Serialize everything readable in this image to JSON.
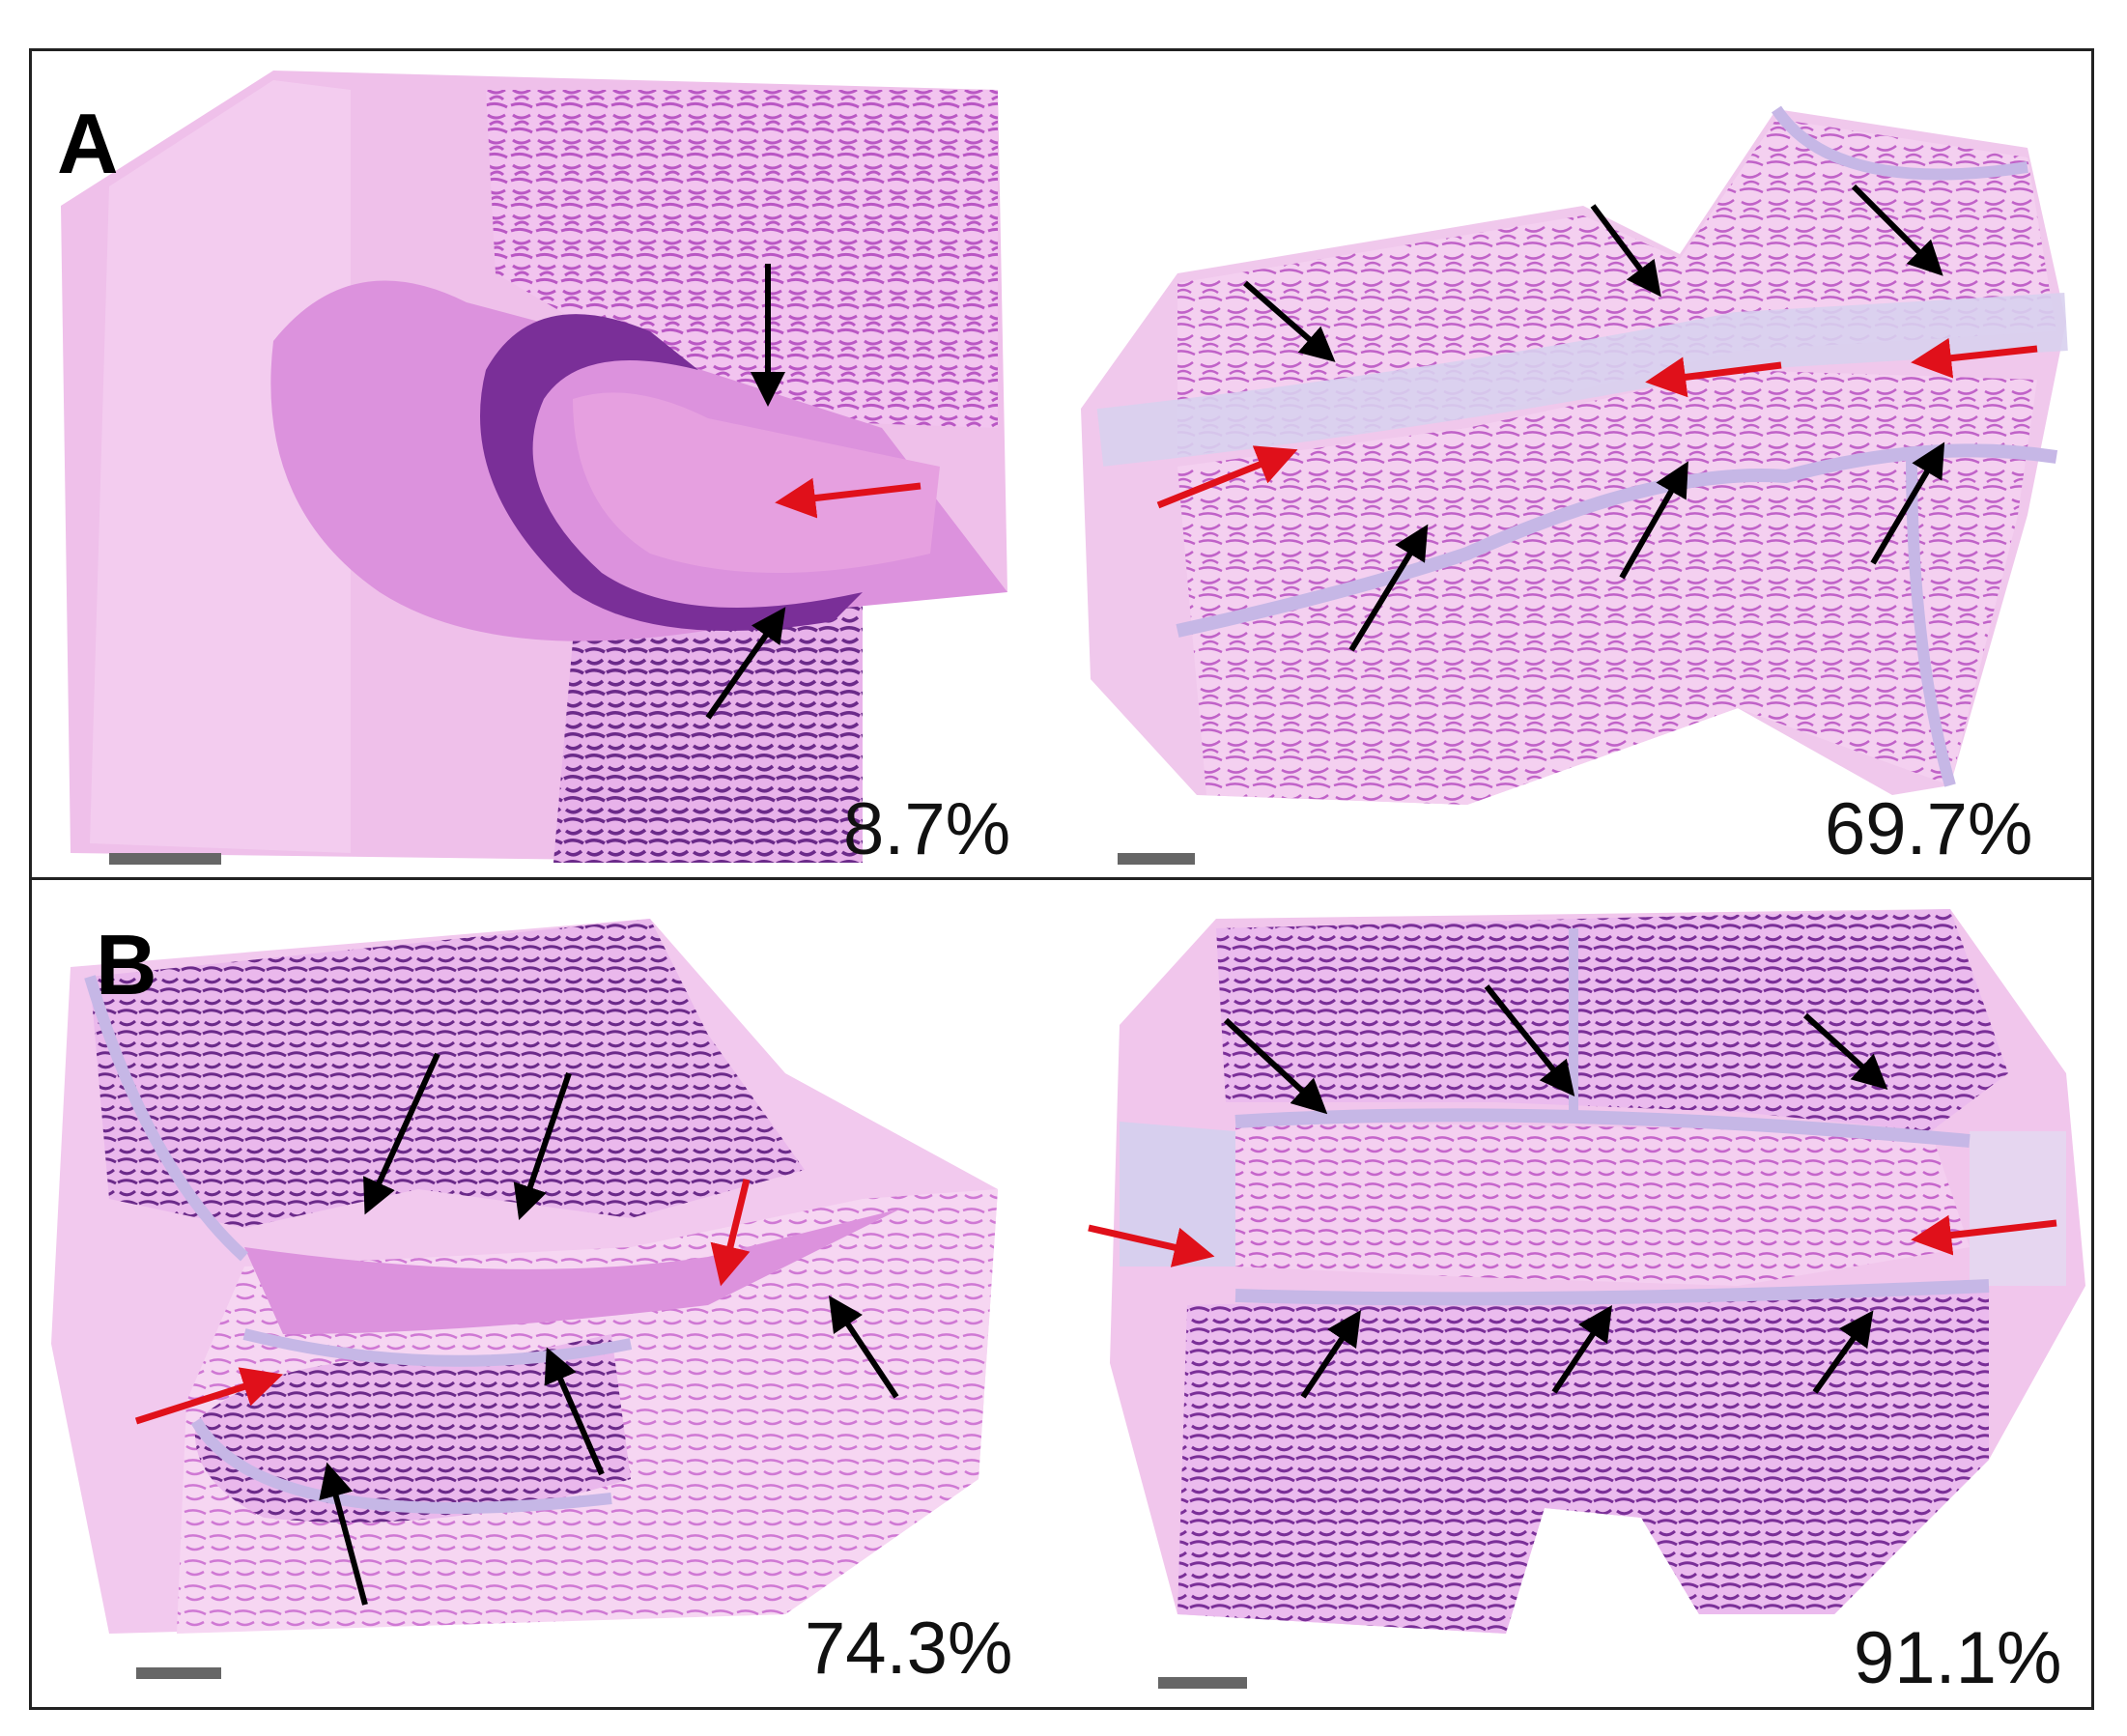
{
  "figure": {
    "panels": [
      {
        "letter": "A",
        "left_value": "8.7%",
        "right_value": "69.7%"
      },
      {
        "letter": "B",
        "left_value": "74.3%",
        "right_value": "91.1%"
      }
    ],
    "colors": {
      "tissue_light": "#e9a7e6",
      "tissue_mid": "#cc6fd4",
      "tissue_dark": "#7a2f98",
      "cartilage": "#c6b7e6",
      "arrow_black": "#000000",
      "arrow_red": "#e0101a",
      "scalebar": "#666666",
      "frame": "#222222"
    }
  }
}
